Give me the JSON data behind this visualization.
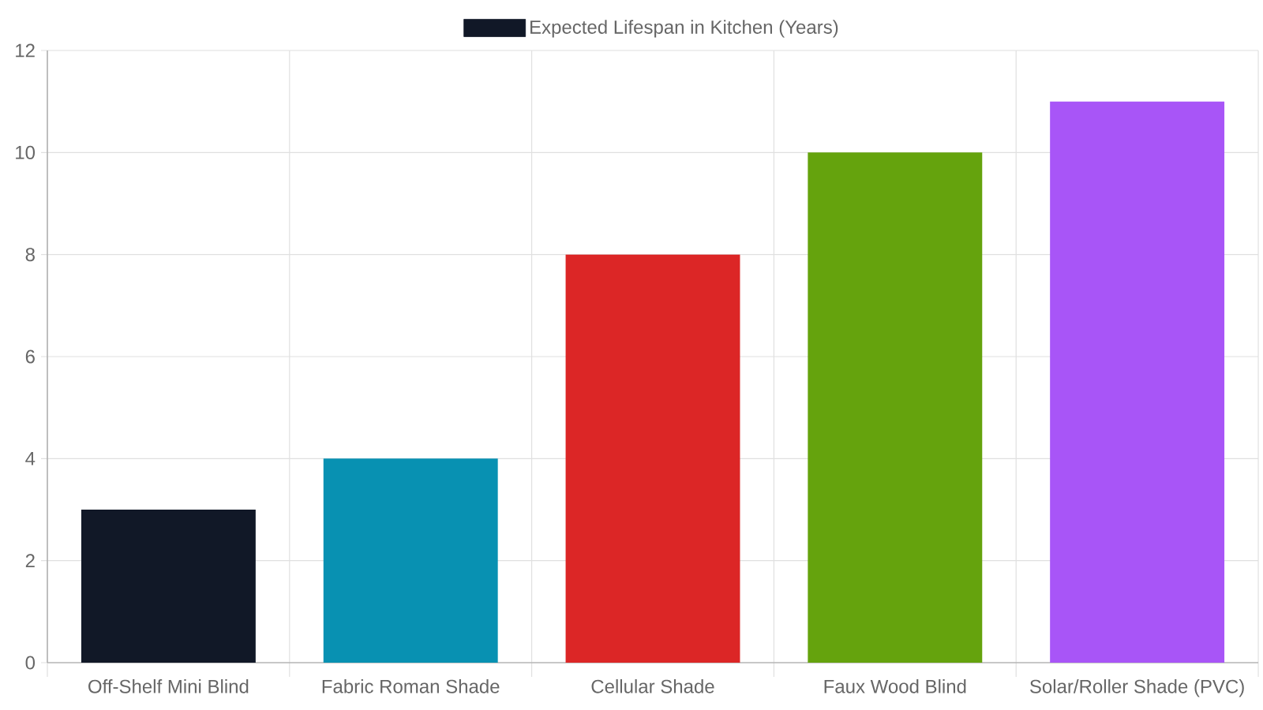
{
  "chart_data": {
    "type": "bar",
    "categories": [
      "Off-Shelf Mini Blind",
      "Fabric Roman Shade",
      "Cellular Shade",
      "Faux Wood Blind",
      "Solar/Roller Shade (PVC)"
    ],
    "series": [
      {
        "name": "Expected Lifespan in Kitchen (Years)",
        "colors": [
          "#111827",
          "#0891b2",
          "#dc2626",
          "#65a30d",
          "#a855f7"
        ],
        "values": [
          3,
          4,
          8,
          10,
          11
        ]
      }
    ],
    "ylim": [
      0,
      12
    ],
    "yticks": [
      0,
      2,
      4,
      6,
      8,
      10,
      12
    ],
    "grid": true,
    "legend": "top"
  }
}
